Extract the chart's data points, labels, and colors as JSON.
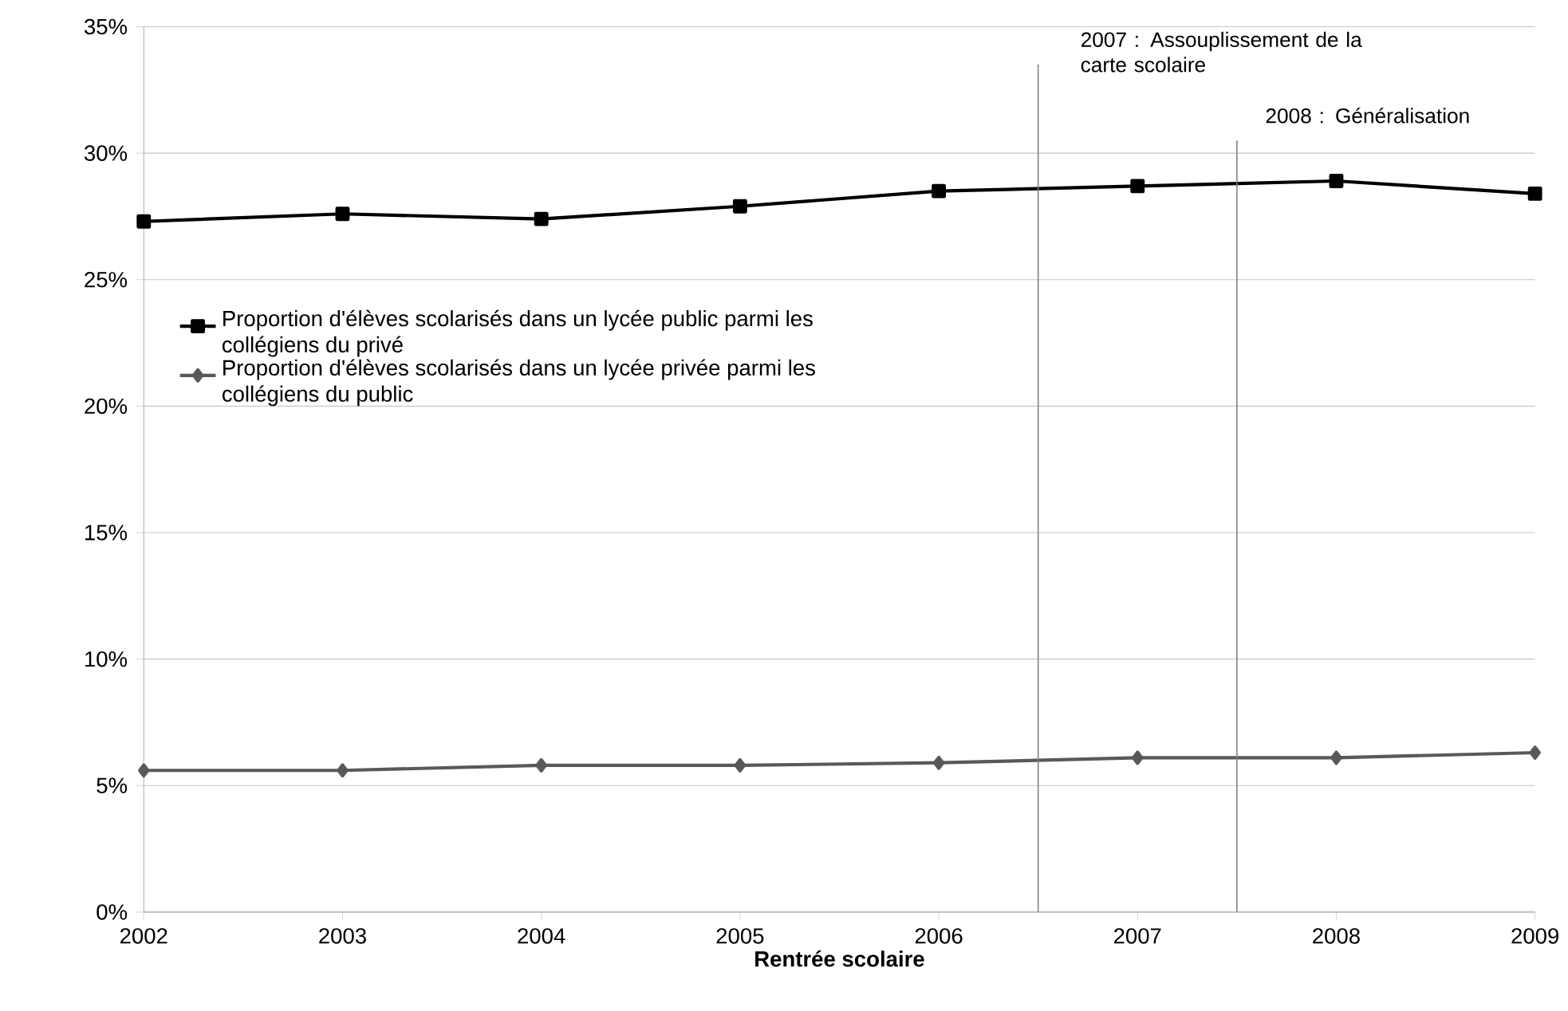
{
  "chart_data": {
    "type": "line",
    "xlabel": "Rentrée scolaire",
    "x": [
      2002,
      2003,
      2004,
      2005,
      2006,
      2007,
      2008,
      2009
    ],
    "series": [
      {
        "name": "Proportion d'élèves scolarisés dans un lycée public parmi les collégiens du privé",
        "color": "#000000",
        "marker": "square",
        "values": [
          27.3,
          27.6,
          27.4,
          27.9,
          28.5,
          28.7,
          28.9,
          28.4
        ]
      },
      {
        "name": "Proportion d'élèves scolarisés dans un lycée privée parmi les collégiens du public",
        "color": "#595959",
        "marker": "diamond",
        "values": [
          5.6,
          5.6,
          5.8,
          5.8,
          5.9,
          6.1,
          6.1,
          6.3
        ]
      }
    ],
    "xlim": [
      2002,
      2009
    ],
    "xticks": [
      2002,
      2003,
      2004,
      2005,
      2006,
      2007,
      2008,
      2009
    ],
    "ylim": [
      0,
      35
    ],
    "yticks": [
      {
        "value": 0,
        "label": "0%"
      },
      {
        "value": 5,
        "label": "5%"
      },
      {
        "value": 10,
        "label": "10%"
      },
      {
        "value": 15,
        "label": "15%"
      },
      {
        "value": 20,
        "label": "20%"
      },
      {
        "value": 25,
        "label": "25%"
      },
      {
        "value": 30,
        "label": "30%"
      },
      {
        "value": 35,
        "label": "35%"
      }
    ],
    "grid": "y",
    "legend": "left",
    "ref_lines": [
      {
        "axis": "x",
        "value": 2006.5,
        "label": "2007 : Assouplissement de la carte scolaire",
        "color": "#808080"
      },
      {
        "axis": "x",
        "value": 2007.5,
        "label": "2008 : Généralisation",
        "color": "#808080"
      }
    ]
  }
}
